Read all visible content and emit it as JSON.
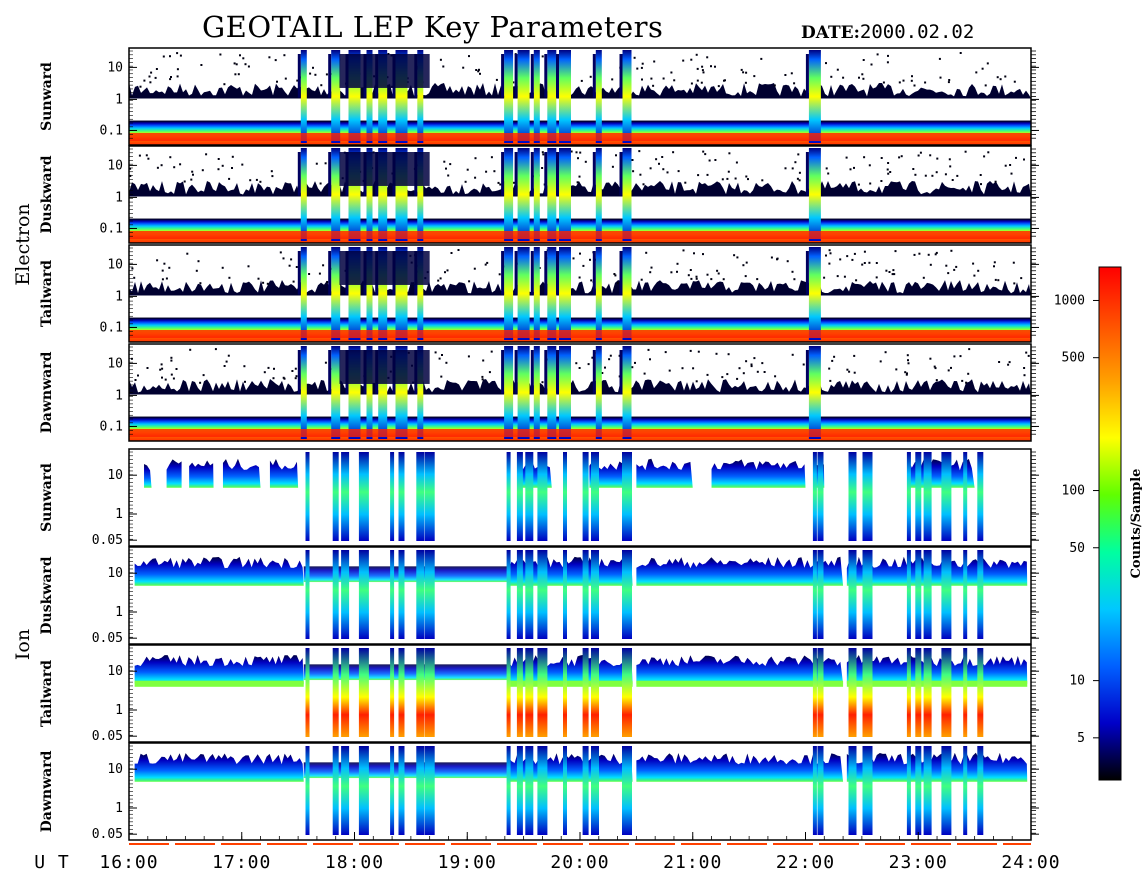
{
  "header": {
    "title": "GEOTAIL LEP Key Parameters",
    "date_label": "DATE:",
    "date_value": "2000.02.02"
  },
  "chart_data": {
    "type": "heatmap",
    "title": "GEOTAIL LEP Key Parameters",
    "x_axis_prefix": "U T",
    "x_ticks": [
      "16:00",
      "17:00",
      "18:00",
      "19:00",
      "20:00",
      "21:00",
      "22:00",
      "23:00",
      "24:00"
    ],
    "xlim": [
      "16:00",
      "24:00"
    ],
    "colorbar": {
      "label": "Counts/Sample",
      "scale": "log",
      "ticks": [
        5,
        10,
        50,
        100,
        500,
        1000
      ],
      "tick_labels": [
        "5",
        "10",
        "50",
        "100",
        "500",
        "1000"
      ],
      "range": [
        3,
        1500
      ],
      "colors": [
        "#000000",
        "#0000c8",
        "#0060ff",
        "#00c8ff",
        "#00ffa0",
        "#60ff00",
        "#ffff00",
        "#ffa000",
        "#ff5000",
        "#ff0000"
      ]
    },
    "groups": [
      {
        "name": "Electron",
        "panels": [
          {
            "name": "Sunward",
            "y_scale": "log",
            "y_ticks": [
              "10",
              "1",
              "0.1"
            ]
          },
          {
            "name": "Duskward",
            "y_scale": "log",
            "y_ticks": [
              "10",
              "1",
              "0.1"
            ]
          },
          {
            "name": "Tailward",
            "y_scale": "log",
            "y_ticks": [
              "10",
              "1",
              "0.1"
            ]
          },
          {
            "name": "Dawnward",
            "y_scale": "log",
            "y_ticks": [
              "10",
              "1",
              "0.1"
            ]
          }
        ]
      },
      {
        "name": "Ion",
        "panels": [
          {
            "name": "Sunward",
            "y_scale": "log",
            "y_ticks": [
              "10",
              "1",
              "0.05"
            ]
          },
          {
            "name": "Duskward",
            "y_scale": "log",
            "y_ticks": [
              "10",
              "1",
              "0.05"
            ]
          },
          {
            "name": "Tailward",
            "y_scale": "log",
            "y_ticks": [
              "10",
              "1",
              "0.05"
            ]
          },
          {
            "name": "Dawnward",
            "y_scale": "log",
            "y_ticks": [
              "10",
              "1",
              "0.05"
            ]
          }
        ]
      }
    ],
    "events": {
      "electron_bursts_ut": [
        "17:33",
        "17:50",
        "18:00",
        "18:08",
        "18:15",
        "18:25",
        "18:35",
        "19:22",
        "19:30",
        "19:37",
        "19:45",
        "19:52",
        "20:10",
        "20:25",
        "22:05"
      ],
      "ion_bursts_ut": [
        "17:35",
        "17:50",
        "17:55",
        "18:05",
        "18:20",
        "18:25",
        "18:35",
        "18:40",
        "19:22",
        "19:28",
        "19:33",
        "19:40",
        "19:52",
        "20:03",
        "20:08",
        "20:25",
        "22:05",
        "22:08",
        "22:25",
        "22:33",
        "22:55",
        "23:00",
        "23:05",
        "23:15",
        "23:25",
        "23:33"
      ]
    }
  }
}
